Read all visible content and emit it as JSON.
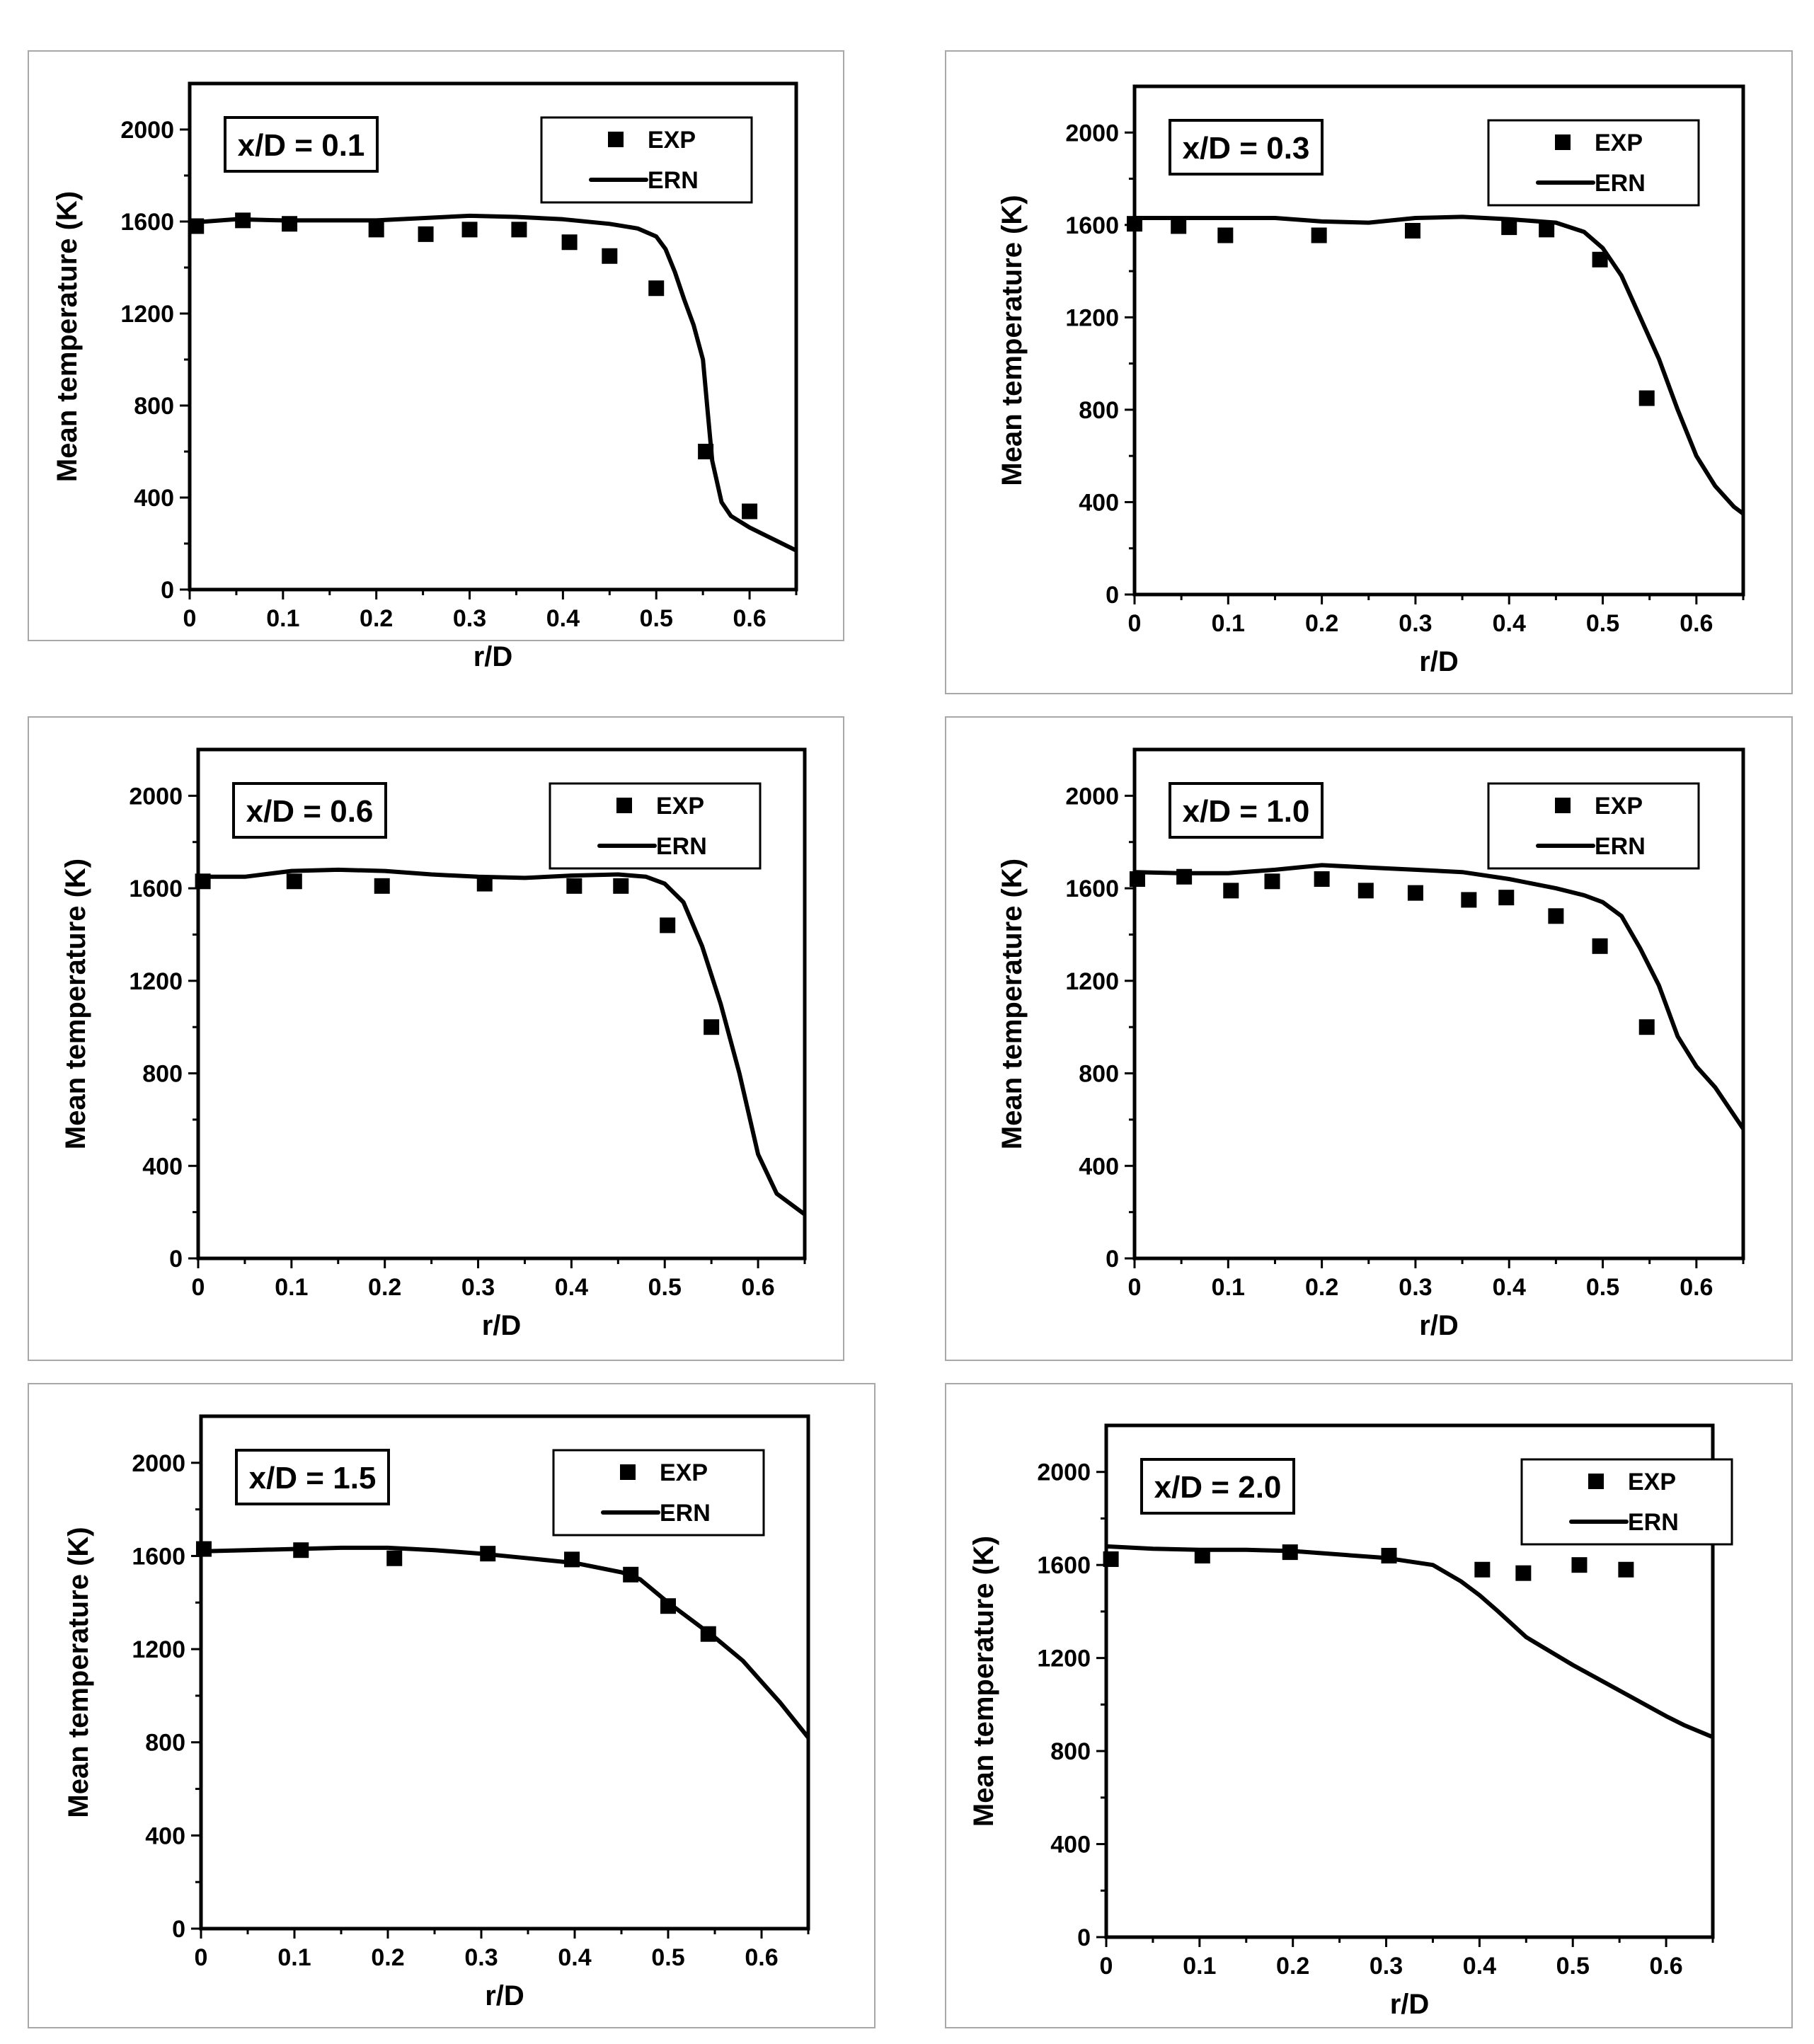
{
  "chart_data": [
    {
      "type": "scatter+line",
      "annotation": "x/D = 0.1",
      "xlabel": "r/D",
      "ylabel": "Mean temperature (K)",
      "xlim": [
        0,
        0.65
      ],
      "ylim": [
        0,
        2200
      ],
      "xticks": [
        "0",
        "0.1",
        "0.2",
        "0.3",
        "0.4",
        "0.5",
        "0.6"
      ],
      "yticks": [
        "0",
        "400",
        "800",
        "1200",
        "1600",
        "2000"
      ],
      "legend": {
        "exp": "EXP",
        "ern": "ERN",
        "position": "top-right"
      },
      "series": [
        {
          "name": "EXP",
          "kind": "markers",
          "x": [
            0.007,
            0.057,
            0.107,
            0.2,
            0.253,
            0.3,
            0.353,
            0.407,
            0.45,
            0.5,
            0.553,
            0.6
          ],
          "y": [
            1580,
            1605,
            1590,
            1565,
            1545,
            1565,
            1565,
            1510,
            1450,
            1310,
            600,
            340
          ]
        },
        {
          "name": "ERN",
          "kind": "line",
          "x": [
            0,
            0.05,
            0.1,
            0.2,
            0.3,
            0.35,
            0.4,
            0.45,
            0.48,
            0.5,
            0.51,
            0.52,
            0.53,
            0.54,
            0.55,
            0.555,
            0.56,
            0.57,
            0.58,
            0.6,
            0.62,
            0.65
          ],
          "y": [
            1595,
            1610,
            1605,
            1605,
            1625,
            1620,
            1610,
            1590,
            1570,
            1535,
            1480,
            1380,
            1260,
            1150,
            1000,
            780,
            560,
            380,
            320,
            270,
            230,
            170
          ]
        }
      ]
    },
    {
      "type": "scatter+line",
      "annotation": "x/D = 0.3",
      "xlabel": "r/D",
      "ylabel": "Mean temperature (K)",
      "xlim": [
        0,
        0.65
      ],
      "ylim": [
        0,
        2200
      ],
      "xticks": [
        "0",
        "0.1",
        "0.2",
        "0.3",
        "0.4",
        "0.5",
        "0.6"
      ],
      "yticks": [
        "0",
        "400",
        "800",
        "1200",
        "1600",
        "2000"
      ],
      "legend": {
        "exp": "EXP",
        "ern": "ERN",
        "position": "top-right"
      },
      "series": [
        {
          "name": "EXP",
          "kind": "markers",
          "x": [
            0,
            0.047,
            0.097,
            0.197,
            0.297,
            0.4,
            0.44,
            0.497,
            0.547
          ],
          "y": [
            1605,
            1595,
            1555,
            1555,
            1575,
            1590,
            1580,
            1450,
            850
          ]
        },
        {
          "name": "ERN",
          "kind": "line",
          "x": [
            0,
            0.05,
            0.1,
            0.15,
            0.2,
            0.25,
            0.3,
            0.35,
            0.4,
            0.45,
            0.48,
            0.5,
            0.52,
            0.54,
            0.56,
            0.58,
            0.6,
            0.62,
            0.64,
            0.65
          ],
          "y": [
            1630,
            1630,
            1630,
            1630,
            1615,
            1610,
            1630,
            1635,
            1625,
            1610,
            1570,
            1500,
            1380,
            1200,
            1020,
            800,
            600,
            470,
            380,
            350
          ]
        }
      ]
    },
    {
      "type": "scatter+line",
      "annotation": "x/D = 0.6",
      "xlabel": "r/D",
      "ylabel": "Mean temperature (K)",
      "xlim": [
        0,
        0.65
      ],
      "ylim": [
        0,
        2200
      ],
      "xticks": [
        "0",
        "0.1",
        "0.2",
        "0.3",
        "0.4",
        "0.5",
        "0.6"
      ],
      "yticks": [
        "0",
        "400",
        "800",
        "1200",
        "1600",
        "2000"
      ],
      "legend": {
        "exp": "EXP",
        "ern": "ERN",
        "position": "top-right"
      },
      "series": [
        {
          "name": "EXP",
          "kind": "markers",
          "x": [
            0.005,
            0.103,
            0.197,
            0.307,
            0.403,
            0.453,
            0.503,
            0.55
          ],
          "y": [
            1630,
            1630,
            1610,
            1620,
            1610,
            1610,
            1440,
            1000
          ]
        },
        {
          "name": "ERN",
          "kind": "line",
          "x": [
            0,
            0.05,
            0.1,
            0.15,
            0.2,
            0.25,
            0.3,
            0.35,
            0.4,
            0.45,
            0.48,
            0.5,
            0.52,
            0.54,
            0.56,
            0.58,
            0.6,
            0.62,
            0.65
          ],
          "y": [
            1650,
            1650,
            1675,
            1680,
            1675,
            1660,
            1650,
            1645,
            1655,
            1660,
            1650,
            1620,
            1540,
            1350,
            1100,
            800,
            450,
            280,
            190
          ]
        }
      ]
    },
    {
      "type": "scatter+line",
      "annotation": "x/D = 1.0",
      "xlabel": "r/D",
      "ylabel": "Mean temperature (K)",
      "xlim": [
        0,
        0.65
      ],
      "ylim": [
        0,
        2200
      ],
      "xticks": [
        "0",
        "0.1",
        "0.2",
        "0.3",
        "0.4",
        "0.5",
        "0.6"
      ],
      "yticks": [
        "0",
        "400",
        "800",
        "1200",
        "1600",
        "2000"
      ],
      "legend": {
        "exp": "EXP",
        "ern": "ERN",
        "position": "top-right"
      },
      "series": [
        {
          "name": "EXP",
          "kind": "markers",
          "x": [
            0.003,
            0.053,
            0.103,
            0.147,
            0.2,
            0.247,
            0.3,
            0.357,
            0.397,
            0.45,
            0.497,
            0.547
          ],
          "y": [
            1640,
            1650,
            1590,
            1630,
            1640,
            1590,
            1580,
            1550,
            1560,
            1480,
            1350,
            1000
          ]
        },
        {
          "name": "ERN",
          "kind": "line",
          "x": [
            0,
            0.05,
            0.1,
            0.15,
            0.2,
            0.25,
            0.3,
            0.35,
            0.4,
            0.45,
            0.48,
            0.5,
            0.52,
            0.54,
            0.56,
            0.58,
            0.6,
            0.62,
            0.65
          ],
          "y": [
            1670,
            1665,
            1665,
            1680,
            1700,
            1690,
            1680,
            1670,
            1640,
            1600,
            1570,
            1540,
            1480,
            1340,
            1180,
            960,
            830,
            740,
            560
          ]
        }
      ]
    },
    {
      "type": "scatter+line",
      "annotation": "x/D = 1.5",
      "xlabel": "r/D",
      "ylabel": "Mean temperature (K)",
      "xlim": [
        0,
        0.65
      ],
      "ylim": [
        0,
        2200
      ],
      "xticks": [
        "0",
        "0.1",
        "0.2",
        "0.3",
        "0.4",
        "0.5",
        "0.6"
      ],
      "yticks": [
        "0",
        "400",
        "800",
        "1200",
        "1600",
        "2000"
      ],
      "legend": {
        "exp": "EXP",
        "ern": "ERN",
        "position": "top-right"
      },
      "series": [
        {
          "name": "EXP",
          "kind": "markers",
          "x": [
            0.003,
            0.107,
            0.207,
            0.307,
            0.397,
            0.46,
            0.5,
            0.543
          ],
          "y": [
            1630,
            1625,
            1590,
            1610,
            1585,
            1520,
            1385,
            1265
          ]
        },
        {
          "name": "ERN",
          "kind": "line",
          "x": [
            0,
            0.05,
            0.1,
            0.15,
            0.2,
            0.25,
            0.3,
            0.35,
            0.4,
            0.45,
            0.47,
            0.5,
            0.52,
            0.55,
            0.58,
            0.6,
            0.62,
            0.65
          ],
          "y": [
            1620,
            1625,
            1630,
            1635,
            1635,
            1625,
            1610,
            1590,
            1570,
            1530,
            1500,
            1400,
            1340,
            1250,
            1150,
            1060,
            970,
            820
          ]
        }
      ]
    },
    {
      "type": "scatter+line",
      "annotation": "x/D = 2.0",
      "xlabel": "r/D",
      "ylabel": "Mean temperature (K)",
      "xlim": [
        0,
        0.65
      ],
      "ylim": [
        0,
        2200
      ],
      "xticks": [
        "0",
        "0.1",
        "0.2",
        "0.3",
        "0.4",
        "0.5",
        "0.6"
      ],
      "yticks": [
        "0",
        "400",
        "800",
        "1200",
        "1600",
        "2000"
      ],
      "legend": {
        "exp": "EXP",
        "ern": "ERN",
        "position": "top-right"
      },
      "series": [
        {
          "name": "EXP",
          "kind": "markers",
          "x": [
            0.005,
            0.103,
            0.197,
            0.303,
            0.403,
            0.447,
            0.507,
            0.557
          ],
          "y": [
            1625,
            1640,
            1655,
            1640,
            1580,
            1565,
            1600,
            1580
          ]
        },
        {
          "name": "ERN",
          "kind": "line",
          "x": [
            0,
            0.05,
            0.1,
            0.15,
            0.2,
            0.25,
            0.3,
            0.35,
            0.38,
            0.4,
            0.42,
            0.45,
            0.5,
            0.55,
            0.6,
            0.62,
            0.65
          ],
          "y": [
            1680,
            1670,
            1665,
            1665,
            1660,
            1645,
            1630,
            1600,
            1530,
            1470,
            1400,
            1290,
            1170,
            1060,
            950,
            910,
            860
          ]
        }
      ]
    }
  ]
}
